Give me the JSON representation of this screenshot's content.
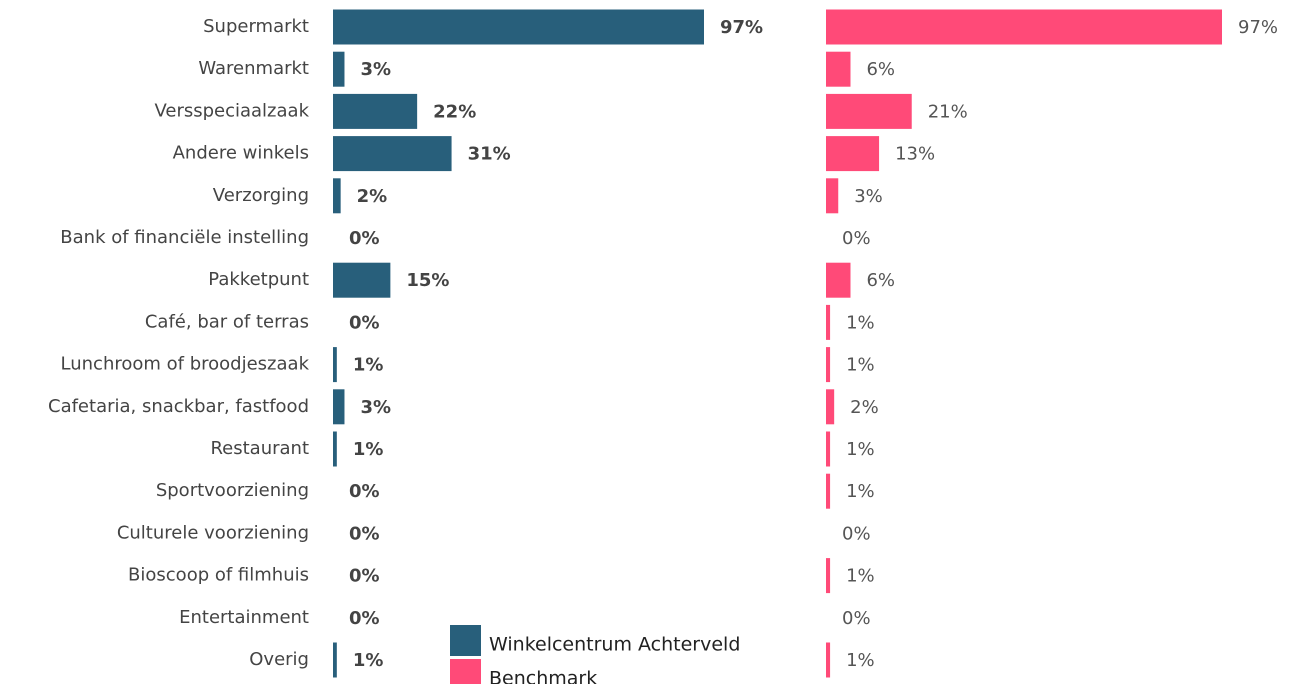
{
  "chart_data": {
    "type": "bar",
    "orientation": "horizontal",
    "categories": [
      "Supermarkt",
      "Warenmarkt",
      "Versspeciaalzaak",
      "Andere winkels",
      "Verzorging",
      "Bank of financiële instelling",
      "Pakketpunt",
      "Café, bar of terras",
      "Lunchroom of broodjeszaak",
      "Cafetaria, snackbar, fastfood",
      "Restaurant",
      "Sportvoorziening",
      "Culturele voorziening",
      "Bioscoop of filmhuis",
      "Entertainment",
      "Overig"
    ],
    "series": [
      {
        "name": "Winkelcentrum Achterveld",
        "color": "#285f7b",
        "values": [
          97,
          3,
          22,
          31,
          2,
          0,
          15,
          0,
          1,
          3,
          1,
          0,
          0,
          0,
          0,
          1
        ],
        "value_labels": [
          "97%",
          "3%",
          "22%",
          "31%",
          "2%",
          "0%",
          "15%",
          "0%",
          "1%",
          "3%",
          "1%",
          "0%",
          "0%",
          "0%",
          "0%",
          "1%"
        ]
      },
      {
        "name": "Benchmark",
        "color": "#ff4a78",
        "values": [
          97,
          6,
          21,
          13,
          3,
          0,
          6,
          1,
          1,
          2,
          1,
          1,
          0,
          1,
          0,
          1
        ],
        "value_labels": [
          "97%",
          "6%",
          "21%",
          "13%",
          "3%",
          "0%",
          "6%",
          "1%",
          "1%",
          "2%",
          "1%",
          "1%",
          "0%",
          "1%",
          "0%",
          "1%"
        ]
      }
    ]
  }
}
